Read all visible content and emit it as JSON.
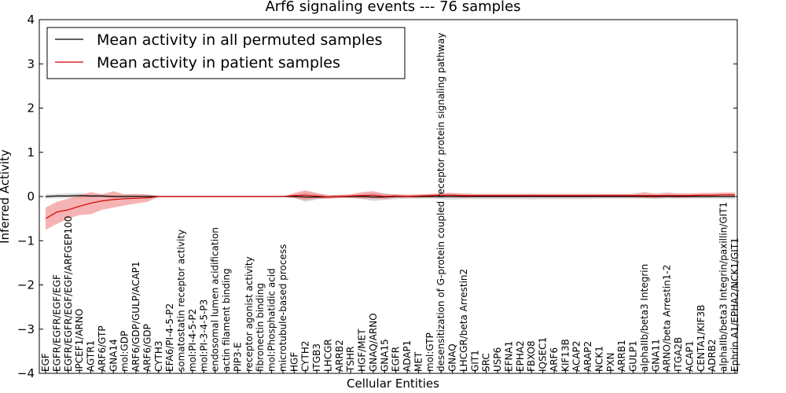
{
  "chart_data": {
    "type": "line",
    "title": "Arf6 signaling events --- 76 samples",
    "xlabel": "Cellular Entities",
    "ylabel": "Inferred Activity",
    "ylim": [
      -4,
      4
    ],
    "yticks": [
      -4,
      -3,
      -2,
      -1,
      0,
      1,
      2,
      3,
      4
    ],
    "grid": false,
    "legend_position": "top-left",
    "categories": [
      "EGF",
      "EGFR/EGFR/EGF/EGF",
      "EGFR/EGFR/EGF/EGF/ARFGEP100",
      "IPCEF1/ARNO",
      "AGTR1",
      "ARF6/GTP",
      "GNA14",
      "mol:GDP",
      "ARF6/GDP/GULP/ACAP1",
      "ARF6/GDP",
      "CYTH3",
      "EFA6/PI-4-5-P2",
      "somatostatin receptor activity",
      "mol:PI-4-5-P2",
      "mol:PI-3-4-5-P3",
      "endosomal lumen acidification",
      "actin filament binding",
      "PIP3-E",
      "receptor agonist activity",
      "fibronectin binding",
      "mol:Phosphatidic acid",
      "microtubule-based process",
      "HGF",
      "CYTH2",
      "ITGB3",
      "LHCGR",
      "ARRB2",
      "TSHR",
      "HGF/MET",
      "GNAQ/ARNO",
      "GNA15",
      "EGFR",
      "ADAP1",
      "MET",
      "mol:GTP",
      "desensitization of G-protein coupled receptor protein signaling pathway",
      "GNAQ",
      "LHCGR/beta Arrestin2",
      "GIT1",
      "SRC",
      "USP6",
      "EFNA1",
      "EPHA2",
      "FBXO8",
      "IQSEC1",
      "ARF6",
      "KIF13B",
      "ACAP2",
      "ARAP2",
      "NCK1",
      "PXN",
      "ARRB1",
      "GULP1",
      "alphaIIb/beta3 Integrin",
      "GNA11",
      "ARNO/beta Arrestin1-2",
      "ITGA2B",
      "ACAP1",
      "CENTA1/KIF3B",
      "ADRB2",
      "alphaIIb/beta3 Integrin/paxillin/GIT1",
      "Ephrin A1/EPHA2/NCK1/GIT1"
    ],
    "series": [
      {
        "name": "Mean activity in all permuted samples",
        "color": "#000000",
        "band_color": "#bbbbbb",
        "values": [
          0.0,
          0.01,
          0.01,
          0.02,
          0.01,
          0.01,
          0.0,
          0.0,
          0.0,
          0.0,
          0.0,
          0.0,
          0.0,
          0.0,
          0.0,
          0.0,
          0.0,
          0.0,
          0.0,
          0.0,
          0.0,
          0.0,
          0.0,
          -0.01,
          -0.01,
          -0.01,
          0.0,
          0.0,
          0.0,
          -0.01,
          -0.01,
          0.0,
          0.0,
          0.0,
          0.0,
          0.0,
          0.0,
          0.0,
          0.0,
          0.0,
          0.0,
          0.0,
          0.0,
          0.0,
          0.0,
          0.0,
          0.0,
          0.0,
          0.0,
          0.0,
          0.0,
          0.0,
          0.0,
          0.0,
          0.0,
          0.0,
          0.0,
          0.0,
          0.0,
          0.0,
          0.0,
          0.0
        ],
        "lower": [
          -0.05,
          -0.04,
          -0.04,
          -0.04,
          -0.03,
          -0.03,
          -0.03,
          -0.03,
          -0.02,
          -0.02,
          0.0,
          0.0,
          0.0,
          0.0,
          0.0,
          0.0,
          0.0,
          0.0,
          0.0,
          0.0,
          0.0,
          0.0,
          -0.03,
          -0.12,
          -0.07,
          -0.04,
          -0.03,
          -0.04,
          -0.06,
          -0.1,
          -0.08,
          -0.06,
          -0.05,
          -0.05,
          -0.05,
          -0.06,
          -0.07,
          -0.06,
          -0.06,
          -0.06,
          -0.06,
          -0.06,
          -0.06,
          -0.07,
          -0.06,
          -0.06,
          -0.06,
          -0.06,
          -0.06,
          -0.05,
          -0.05,
          -0.05,
          -0.05,
          -0.05,
          -0.06,
          -0.05,
          -0.05,
          -0.05,
          -0.05,
          -0.05,
          -0.05,
          -0.06
        ],
        "upper": [
          0.05,
          0.06,
          0.07,
          0.08,
          0.05,
          0.05,
          0.04,
          0.04,
          0.04,
          0.04,
          0.0,
          0.0,
          0.0,
          0.0,
          0.0,
          0.0,
          0.0,
          0.0,
          0.0,
          0.0,
          0.0,
          0.0,
          0.03,
          0.1,
          0.06,
          0.03,
          0.03,
          0.04,
          0.06,
          0.08,
          0.07,
          0.05,
          0.04,
          0.04,
          0.04,
          0.05,
          0.06,
          0.05,
          0.05,
          0.05,
          0.05,
          0.05,
          0.05,
          0.06,
          0.05,
          0.05,
          0.05,
          0.05,
          0.05,
          0.05,
          0.05,
          0.05,
          0.05,
          0.05,
          0.05,
          0.05,
          0.05,
          0.05,
          0.05,
          0.05,
          0.05,
          0.05
        ]
      },
      {
        "name": "Mean activity in patient samples",
        "color": "#d40000",
        "band_color": "#f08080",
        "values": [
          -0.5,
          -0.35,
          -0.3,
          -0.22,
          -0.15,
          -0.1,
          -0.07,
          -0.05,
          -0.04,
          -0.03,
          0.0,
          0.0,
          0.0,
          0.0,
          0.0,
          0.0,
          0.0,
          0.0,
          0.0,
          0.0,
          0.0,
          0.0,
          0.02,
          0.03,
          0.01,
          -0.01,
          0.0,
          0.01,
          0.02,
          0.03,
          0.0,
          0.01,
          0.0,
          0.01,
          0.02,
          0.03,
          0.03,
          0.02,
          0.02,
          0.02,
          0.02,
          0.02,
          0.02,
          0.02,
          0.02,
          0.02,
          0.02,
          0.02,
          0.02,
          0.02,
          0.02,
          0.02,
          0.02,
          0.02,
          0.02,
          0.02,
          0.02,
          0.02,
          0.03,
          0.03,
          0.04,
          0.04
        ],
        "lower": [
          -0.75,
          -0.62,
          -0.5,
          -0.42,
          -0.4,
          -0.3,
          -0.25,
          -0.2,
          -0.16,
          -0.12,
          -0.01,
          0.0,
          0.0,
          0.0,
          0.0,
          0.0,
          0.0,
          0.0,
          0.0,
          0.0,
          0.0,
          0.0,
          -0.04,
          -0.08,
          -0.05,
          -0.05,
          -0.04,
          -0.03,
          -0.05,
          -0.05,
          -0.06,
          -0.03,
          -0.03,
          -0.03,
          -0.02,
          -0.02,
          -0.02,
          -0.03,
          -0.02,
          -0.02,
          -0.02,
          -0.02,
          -0.02,
          -0.02,
          -0.02,
          -0.02,
          -0.02,
          -0.02,
          -0.02,
          -0.02,
          -0.02,
          -0.02,
          -0.02,
          -0.03,
          -0.04,
          -0.02,
          -0.03,
          -0.02,
          -0.02,
          -0.01,
          0.0,
          0.0
        ],
        "upper": [
          -0.25,
          -0.12,
          -0.05,
          0.03,
          0.1,
          0.05,
          0.12,
          0.05,
          0.06,
          0.05,
          0.01,
          0.0,
          0.0,
          0.0,
          0.0,
          0.0,
          0.0,
          0.0,
          0.0,
          0.0,
          0.0,
          0.0,
          0.08,
          0.14,
          0.08,
          0.03,
          0.04,
          0.05,
          0.1,
          0.12,
          0.06,
          0.05,
          0.04,
          0.05,
          0.06,
          0.08,
          0.08,
          0.07,
          0.06,
          0.06,
          0.06,
          0.06,
          0.06,
          0.06,
          0.06,
          0.06,
          0.06,
          0.06,
          0.06,
          0.06,
          0.06,
          0.06,
          0.06,
          0.1,
          0.06,
          0.09,
          0.07,
          0.07,
          0.08,
          0.08,
          0.09,
          0.09
        ]
      }
    ]
  }
}
